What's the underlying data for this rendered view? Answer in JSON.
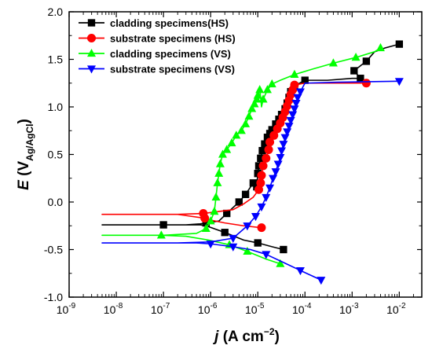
{
  "chart_data": {
    "type": "line",
    "xscale": "log",
    "xlim": [
      1e-09,
      0.03
    ],
    "ylim": [
      -1.0,
      2.0
    ],
    "yticks": [
      -1.0,
      -0.5,
      0.0,
      0.5,
      1.0,
      1.5,
      2.0
    ],
    "ytick_labels": [
      "-1.0",
      "-0.5",
      "0.0",
      "0.5",
      "1.0",
      "1.5",
      "2.0"
    ],
    "xticks": [
      -9,
      -8,
      -7,
      -6,
      -5,
      -4,
      -3,
      -2
    ],
    "xtick_labels": [
      {
        "base": "10",
        "exp": "-9"
      },
      {
        "base": "10",
        "exp": "-8"
      },
      {
        "base": "10",
        "exp": "-7"
      },
      {
        "base": "10",
        "exp": "-6"
      },
      {
        "base": "10",
        "exp": "-5"
      },
      {
        "base": "10",
        "exp": "-4"
      },
      {
        "base": "10",
        "exp": "-3"
      },
      {
        "base": "10",
        "exp": "-2"
      }
    ],
    "xlabel": {
      "italic": "j",
      "text": " (A cm",
      "sup": "−2",
      "end": ")"
    },
    "ylabel": {
      "italic": "E",
      "text": " (V",
      "sub": "Ag/AgCl",
      "end": ")"
    },
    "legend_position": "top-left",
    "series": [
      {
        "name": "cladding specimens(HS)",
        "color": "#000000",
        "marker": "square",
        "x": [
          3.5e-05,
          2e-05,
          1e-05,
          5e-06,
          2e-06,
          8e-07,
          6e-07,
          1e-07,
          8e-09,
          5e-09,
          8e-09,
          3e-07,
          6e-07,
          8e-07,
          1.5e-06,
          2.2e-06,
          4e-06,
          5.5e-06,
          8e-06,
          9.5e-06,
          1e-05,
          1.05e-05,
          1.15e-05,
          1.25e-05,
          1.4e-05,
          1.6e-05,
          1.8e-05,
          2e-05,
          2.4e-05,
          2.8e-05,
          3.2e-05,
          3.8e-05,
          4.2e-05,
          4.6e-05,
          5e-05,
          6e-05,
          0.0001,
          0.0003,
          0.001,
          0.0015,
          0.0011,
          0.002,
          0.003,
          0.005,
          0.01
        ],
        "y": [
          -0.5,
          -0.47,
          -0.43,
          -0.4,
          -0.32,
          -0.25,
          -0.24,
          -0.24,
          -0.24,
          -0.24,
          -0.24,
          -0.24,
          -0.23,
          -0.22,
          -0.2,
          -0.12,
          0.0,
          0.08,
          0.2,
          0.16,
          0.3,
          0.38,
          0.46,
          0.54,
          0.61,
          0.68,
          0.72,
          0.76,
          0.82,
          0.87,
          0.92,
          0.98,
          1.04,
          1.1,
          1.16,
          1.22,
          1.28,
          1.28,
          1.3,
          1.3,
          1.38,
          1.48,
          1.58,
          1.62,
          1.66
        ],
        "markers_at": [
          0,
          2,
          4,
          7,
          13,
          15,
          16,
          17,
          18,
          19,
          20,
          21,
          22,
          23,
          24,
          25,
          26,
          27,
          28,
          29,
          30,
          31,
          32,
          33,
          34,
          35,
          36,
          39,
          40,
          41,
          44
        ]
      },
      {
        "name": "substrate specimens (HS)",
        "color": "#ff0000",
        "marker": "circle",
        "x": [
          1.2e-05,
          5e-06,
          2e-06,
          1e-06,
          7.5e-07,
          2e-07,
          5e-09,
          2e-07,
          7e-07,
          1.5e-06,
          3e-06,
          5e-06,
          8e-06,
          1.05e-05,
          1.15e-05,
          1.2e-05,
          1.3e-05,
          1.5e-05,
          1.7e-05,
          1.8e-05,
          2.2e-05,
          2.6e-05,
          3e-05,
          3.4e-05,
          3.8e-05,
          4.2e-05,
          4.6e-05,
          5e-05,
          5.5e-05,
          6e-05,
          0.0001,
          0.0005,
          0.002
        ],
        "y": [
          -0.27,
          -0.25,
          -0.22,
          -0.19,
          -0.17,
          -0.13,
          -0.13,
          -0.13,
          -0.12,
          -0.1,
          -0.08,
          -0.02,
          0.05,
          0.13,
          0.2,
          0.28,
          0.38,
          0.46,
          0.55,
          0.63,
          0.7,
          0.77,
          0.83,
          0.89,
          0.95,
          1.01,
          1.07,
          1.13,
          1.18,
          1.23,
          1.25,
          1.25,
          1.25
        ],
        "markers_at": [
          0,
          4,
          8,
          13,
          14,
          15,
          16,
          17,
          18,
          19,
          20,
          21,
          22,
          23,
          24,
          25,
          26,
          27,
          28,
          29,
          32
        ]
      },
      {
        "name": "cladding specimens (VS)",
        "color": "#00ff00",
        "marker": "triangle-up",
        "x": [
          3e-05,
          1.5e-05,
          6e-06,
          2.5e-06,
          9e-07,
          3e-07,
          9e-08,
          5e-09,
          1e-07,
          5e-07,
          8e-07,
          1e-06,
          1.2e-06,
          1.3e-06,
          1.4e-06,
          1.5e-06,
          1.6e-06,
          1.8e-06,
          2.2e-06,
          2.8e-06,
          3.5e-06,
          4.5e-06,
          5.5e-06,
          6.5e-06,
          7.5e-06,
          8.5e-06,
          9.5e-06,
          1e-05,
          1.1e-05,
          1.15e-05,
          1.2e-05,
          1.3e-05,
          1.6e-05,
          2e-05,
          3e-05,
          6e-05,
          0.00015,
          0.0004,
          0.0012,
          0.003,
          0.004
        ],
        "y": [
          -0.65,
          -0.6,
          -0.52,
          -0.45,
          -0.4,
          -0.36,
          -0.35,
          -0.35,
          -0.35,
          -0.33,
          -0.28,
          -0.2,
          -0.1,
          0.05,
          0.2,
          0.3,
          0.4,
          0.5,
          0.55,
          0.62,
          0.7,
          0.75,
          0.82,
          0.9,
          0.98,
          1.03,
          1.08,
          1.12,
          1.18,
          1.1,
          1.0,
          1.08,
          1.18,
          1.24,
          1.28,
          1.34,
          1.4,
          1.46,
          1.52,
          1.58,
          1.62
        ],
        "markers_at": [
          0,
          2,
          3,
          6,
          10,
          11,
          12,
          13,
          14,
          15,
          16,
          17,
          18,
          19,
          20,
          21,
          22,
          23,
          24,
          25,
          26,
          27,
          28,
          31,
          32,
          33,
          35,
          37,
          38,
          40
        ]
      },
      {
        "name": "substrate specimens (VS)",
        "color": "#0000ff",
        "marker": "triangle-down",
        "x": [
          0.00022,
          8e-05,
          3e-05,
          1.5e-05,
          7e-06,
          3e-06,
          1e-06,
          5e-07,
          1e-07,
          5e-09,
          2e-07,
          1e-06,
          3e-06,
          6e-06,
          9e-06,
          1.2e-05,
          1.5e-05,
          1.8e-05,
          2.1e-05,
          2.4e-05,
          2.7e-05,
          3e-05,
          3.2e-05,
          3.5e-05,
          3.8e-05,
          4.2e-05,
          4.6e-05,
          5e-05,
          5.5e-05,
          6e-05,
          6.5e-05,
          7e-05,
          8e-05,
          0.0001,
          0.0005,
          0.01
        ],
        "y": [
          -0.82,
          -0.72,
          -0.62,
          -0.55,
          -0.5,
          -0.47,
          -0.44,
          -0.43,
          -0.43,
          -0.43,
          -0.43,
          -0.42,
          -0.38,
          -0.25,
          -0.15,
          -0.05,
          0.05,
          0.15,
          0.25,
          0.32,
          0.4,
          0.47,
          0.54,
          0.61,
          0.68,
          0.74,
          0.8,
          0.86,
          0.92,
          0.98,
          1.04,
          1.1,
          1.16,
          1.25,
          1.26,
          1.27
        ],
        "markers_at": [
          0,
          1,
          3,
          5,
          6,
          12,
          13,
          14,
          15,
          16,
          17,
          18,
          19,
          20,
          21,
          22,
          23,
          24,
          25,
          26,
          27,
          28,
          29,
          30,
          31,
          32,
          35
        ]
      }
    ]
  }
}
